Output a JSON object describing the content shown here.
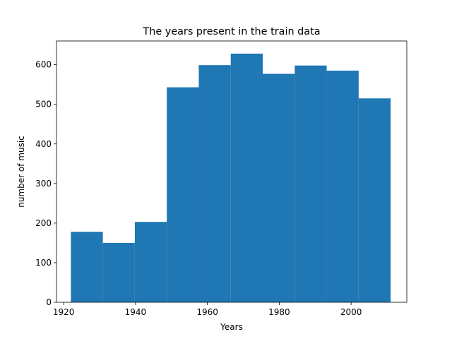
{
  "chart_data": {
    "type": "bar",
    "subtype": "histogram",
    "title": "The years present in the train data",
    "xlabel": "Years",
    "ylabel": "number of music",
    "bin_edges": [
      1922.0,
      1930.9,
      1939.8,
      1948.7,
      1957.6,
      1966.5,
      1975.4,
      1984.3,
      1993.2,
      2002.1,
      2011.0
    ],
    "values": [
      178,
      150,
      203,
      543,
      599,
      628,
      577,
      598,
      585,
      515
    ],
    "xlim": [
      1918.0,
      2015.5
    ],
    "ylim": [
      0,
      660
    ],
    "xticks": [
      1920,
      1940,
      1960,
      1980,
      2000
    ],
    "yticks": [
      0,
      100,
      200,
      300,
      400,
      500,
      600
    ],
    "bar_color": "#1f77b4",
    "grid": false,
    "legend": "none"
  }
}
